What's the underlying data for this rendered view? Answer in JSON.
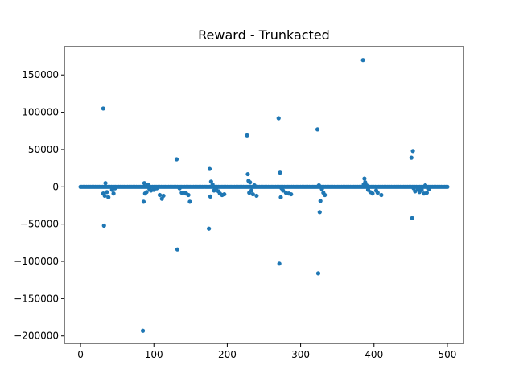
{
  "chart_data": {
    "type": "scatter",
    "title": "Reward - Trunkacted",
    "xlabel": "",
    "ylabel": "",
    "xlim": [
      -22,
      522
    ],
    "ylim": [
      -210000,
      188000
    ],
    "x_ticks": [
      0,
      100,
      200,
      300,
      400,
      500
    ],
    "y_ticks": [
      -200000,
      -150000,
      -100000,
      -50000,
      0,
      50000,
      100000,
      150000
    ],
    "x_tick_labels": [
      "0",
      "100",
      "200",
      "300",
      "400",
      "500"
    ],
    "y_tick_labels": [
      "−200000",
      "−150000",
      "−100000",
      "−50000",
      "0",
      "50000",
      "100000",
      "150000"
    ],
    "grid": false,
    "marker_color": "#1f77b4",
    "series": [
      {
        "name": "",
        "x": [
          31,
          32,
          31,
          33,
          34,
          36,
          38,
          43,
          45,
          47,
          85,
          86,
          87,
          88,
          90,
          92,
          94,
          96,
          100,
          104,
          108,
          111,
          113,
          131,
          132,
          135,
          138,
          142,
          144,
          147,
          149,
          175,
          176,
          177,
          178,
          180,
          182,
          185,
          188,
          190,
          193,
          196,
          227,
          228,
          229,
          230,
          231,
          233,
          235,
          237,
          240,
          270,
          271,
          272,
          273,
          274,
          276,
          280,
          284,
          287,
          323,
          324,
          325,
          326,
          327,
          329,
          331,
          333,
          385,
          386,
          387,
          388,
          390,
          392,
          395,
          398,
          403,
          405,
          410,
          451,
          452,
          453,
          454,
          456,
          460,
          462,
          465,
          468,
          470,
          472,
          475
        ],
        "y": [
          105000,
          -52000,
          -9000,
          -12000,
          5000,
          -7000,
          -14000,
          -4000,
          -9000,
          -2000,
          -193000,
          -20000,
          5000,
          -9000,
          -7000,
          3000,
          -3000,
          -5000,
          -4000,
          -2000,
          -11000,
          -16000,
          -12000,
          37000,
          -84000,
          -2000,
          -8000,
          -8000,
          -9000,
          -11000,
          -20000,
          -56000,
          24000,
          -13000,
          7000,
          3000,
          -5000,
          -2000,
          -6000,
          -9000,
          -11000,
          -10000,
          69000,
          17000,
          8000,
          -8000,
          6000,
          -5000,
          -10000,
          2000,
          -12000,
          92000,
          -103000,
          19000,
          -14000,
          -2000,
          -5000,
          -8000,
          -9000,
          -10000,
          77000,
          -116000,
          2000,
          -34000,
          -19000,
          -3000,
          -8000,
          -11000,
          170000,
          3000,
          11000,
          6000,
          2000,
          -4000,
          -7000,
          -9000,
          -5000,
          -8000,
          -11000,
          39000,
          -42000,
          48000,
          -2000,
          -6000,
          -3000,
          -7000,
          -4000,
          -9000,
          2000,
          -8000,
          -3000
        ]
      }
    ]
  }
}
